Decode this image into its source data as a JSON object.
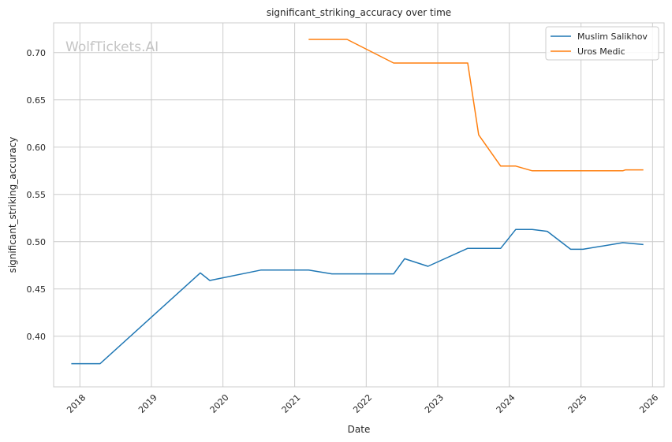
{
  "chart_data": {
    "type": "line",
    "title": "significant_striking_accuracy over time",
    "xlabel": "Date",
    "ylabel": "significant_striking_accuracy",
    "watermark": "WolfTickets.AI",
    "xlim": [
      "2017-08-20",
      "2026-03-01"
    ],
    "ylim": [
      0.3465,
      0.7315
    ],
    "x_ticks": [
      "2018-01-01",
      "2019-01-01",
      "2020-01-01",
      "2021-01-01",
      "2022-01-01",
      "2023-01-01",
      "2024-01-01",
      "2025-01-01",
      "2026-01-01"
    ],
    "x_tick_labels": [
      "2018",
      "2019",
      "2020",
      "2021",
      "2022",
      "2023",
      "2024",
      "2025",
      "2026"
    ],
    "y_ticks": [
      0.4,
      0.45,
      0.5,
      0.55,
      0.6,
      0.65,
      0.7
    ],
    "y_tick_labels": [
      "0.40",
      "0.45",
      "0.50",
      "0.55",
      "0.60",
      "0.65",
      "0.70"
    ],
    "grid": true,
    "legend": "top-right",
    "series": [
      {
        "name": "Muslim Salikhov",
        "color": "#1f77b4",
        "points": [
          [
            "2017-11-18",
            0.371
          ],
          [
            "2018-04-14",
            0.371
          ],
          [
            "2019-09-07",
            0.467
          ],
          [
            "2019-10-26",
            0.459
          ],
          [
            "2020-07-12",
            0.47
          ],
          [
            "2021-03-13",
            0.47
          ],
          [
            "2021-07-10",
            0.466
          ],
          [
            "2022-05-21",
            0.466
          ],
          [
            "2022-07-16",
            0.482
          ],
          [
            "2022-11-12",
            0.474
          ],
          [
            "2023-06-03",
            0.493
          ],
          [
            "2023-11-18",
            0.493
          ],
          [
            "2024-02-03",
            0.513
          ],
          [
            "2024-04-27",
            0.513
          ],
          [
            "2024-07-13",
            0.511
          ],
          [
            "2024-11-09",
            0.492
          ],
          [
            "2025-01-11",
            0.492
          ],
          [
            "2025-08-02",
            0.499
          ],
          [
            "2025-11-15",
            0.497
          ]
        ]
      },
      {
        "name": "Uros Medic",
        "color": "#ff7f0e",
        "points": [
          [
            "2021-03-13",
            0.714
          ],
          [
            "2021-09-25",
            0.714
          ],
          [
            "2022-05-21",
            0.689
          ],
          [
            "2023-06-03",
            0.689
          ],
          [
            "2023-07-29",
            0.613
          ],
          [
            "2023-11-18",
            0.58
          ],
          [
            "2024-02-03",
            0.58
          ],
          [
            "2024-04-27",
            0.575
          ],
          [
            "2024-11-09",
            0.575
          ],
          [
            "2025-01-11",
            0.575
          ],
          [
            "2025-08-02",
            0.575
          ],
          [
            "2025-08-16",
            0.576
          ],
          [
            "2025-11-15",
            0.576
          ]
        ]
      }
    ]
  }
}
